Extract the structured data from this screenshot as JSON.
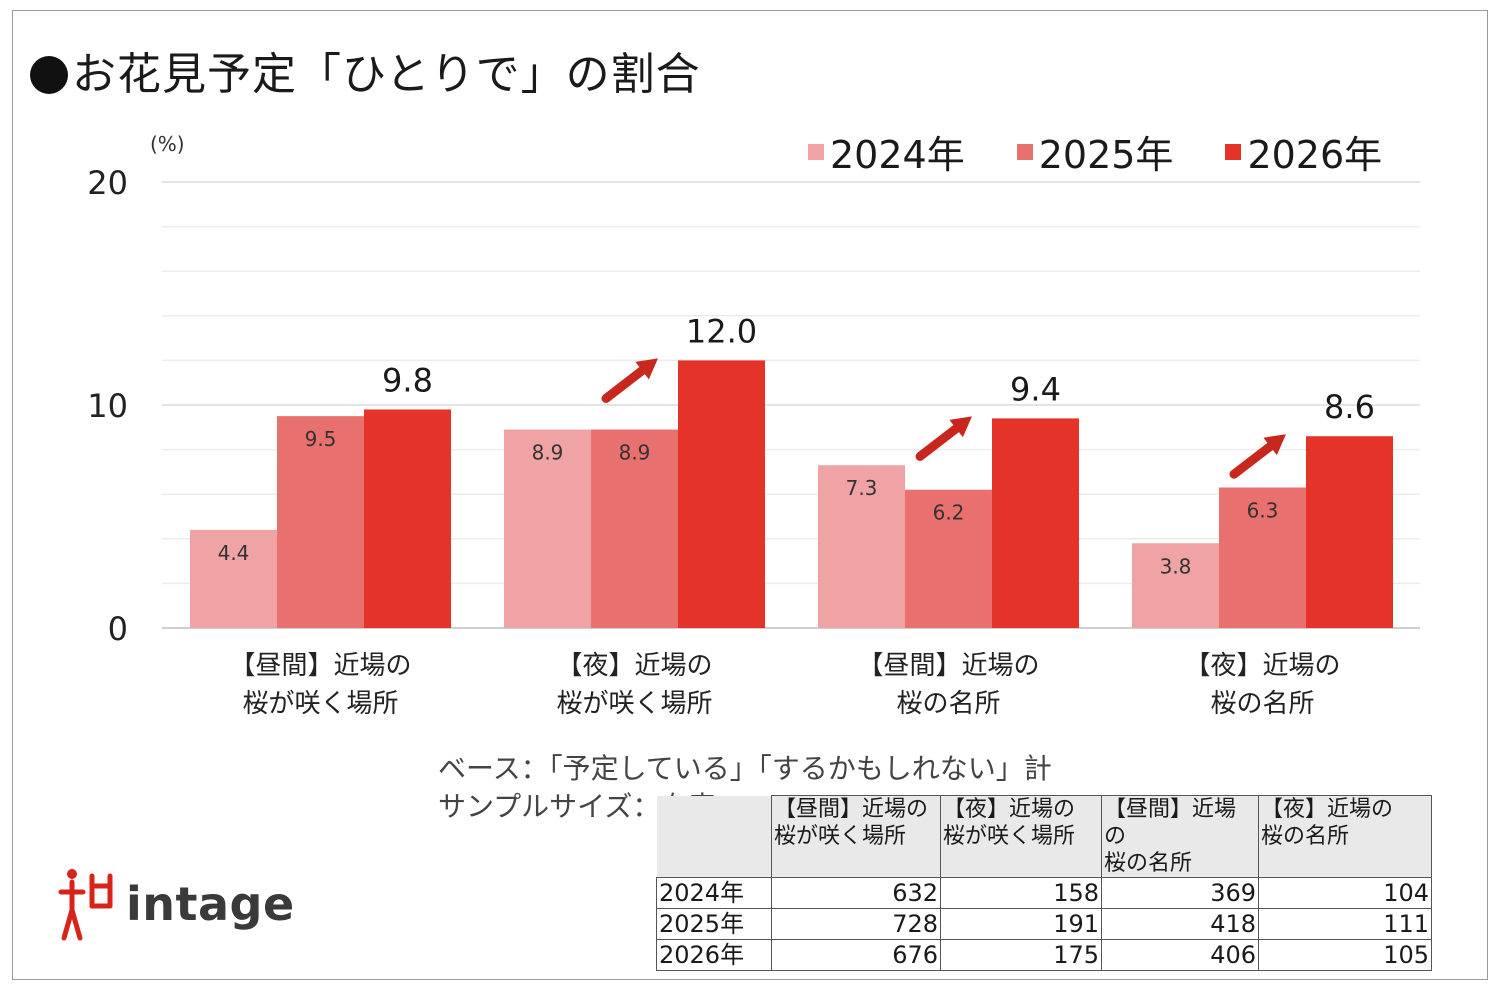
{
  "title": "●お花見予定「ひとりで」の割合",
  "unit_label": "(%)",
  "colors": {
    "s2024": "#f0a3a5",
    "s2025": "#e8706e",
    "s2026": "#e5332a",
    "arrow": "#c8271e"
  },
  "chart_data": {
    "type": "bar",
    "title": "お花見予定「ひとりで」の割合",
    "ylabel": "(%)",
    "ylim": [
      0,
      20
    ],
    "yticks": [
      0,
      10,
      20
    ],
    "grid": true,
    "legend_position": "top-right",
    "categories": [
      [
        "【昼間】近場の",
        "桜が咲く場所"
      ],
      [
        "【夜】近場の",
        "桜が咲く場所"
      ],
      [
        "【昼間】近場の",
        "桜の名所"
      ],
      [
        "【夜】近場の",
        "桜の名所"
      ]
    ],
    "series": [
      {
        "name": "2024年",
        "values": [
          4.4,
          8.9,
          7.3,
          3.8
        ],
        "labels": [
          "4.4",
          "8.9",
          "7.3",
          "3.8"
        ]
      },
      {
        "name": "2025年",
        "values": [
          9.5,
          8.9,
          6.2,
          6.3
        ],
        "labels": [
          "9.5",
          "8.9",
          "6.2",
          "6.3"
        ]
      },
      {
        "name": "2026年",
        "values": [
          9.8,
          12.0,
          9.4,
          8.6
        ],
        "labels": [
          "9.8",
          "12.0",
          "9.4",
          "8.6"
        ]
      }
    ],
    "increase_arrows": [
      false,
      true,
      true,
      true
    ]
  },
  "base_note": {
    "line1": "ベース：「予定している」「するかもしれない」計",
    "line2": "サンプルサイズ：右表"
  },
  "sample_table": {
    "headers": [
      [
        "【昼間】近場の",
        "桜が咲く場所"
      ],
      [
        "【夜】近場の",
        "桜が咲く場所"
      ],
      [
        "【昼間】近場の",
        "桜の名所"
      ],
      [
        "【夜】近場の",
        "桜の名所"
      ]
    ],
    "rows": [
      {
        "year": "2024年",
        "values": [
          "632",
          "158",
          "369",
          "104"
        ]
      },
      {
        "year": "2025年",
        "values": [
          "728",
          "191",
          "418",
          "111"
        ]
      },
      {
        "year": "2026年",
        "values": [
          "676",
          "175",
          "406",
          "105"
        ]
      }
    ]
  },
  "logo": {
    "text": "intage",
    "icon": "intage-figure-logo"
  }
}
